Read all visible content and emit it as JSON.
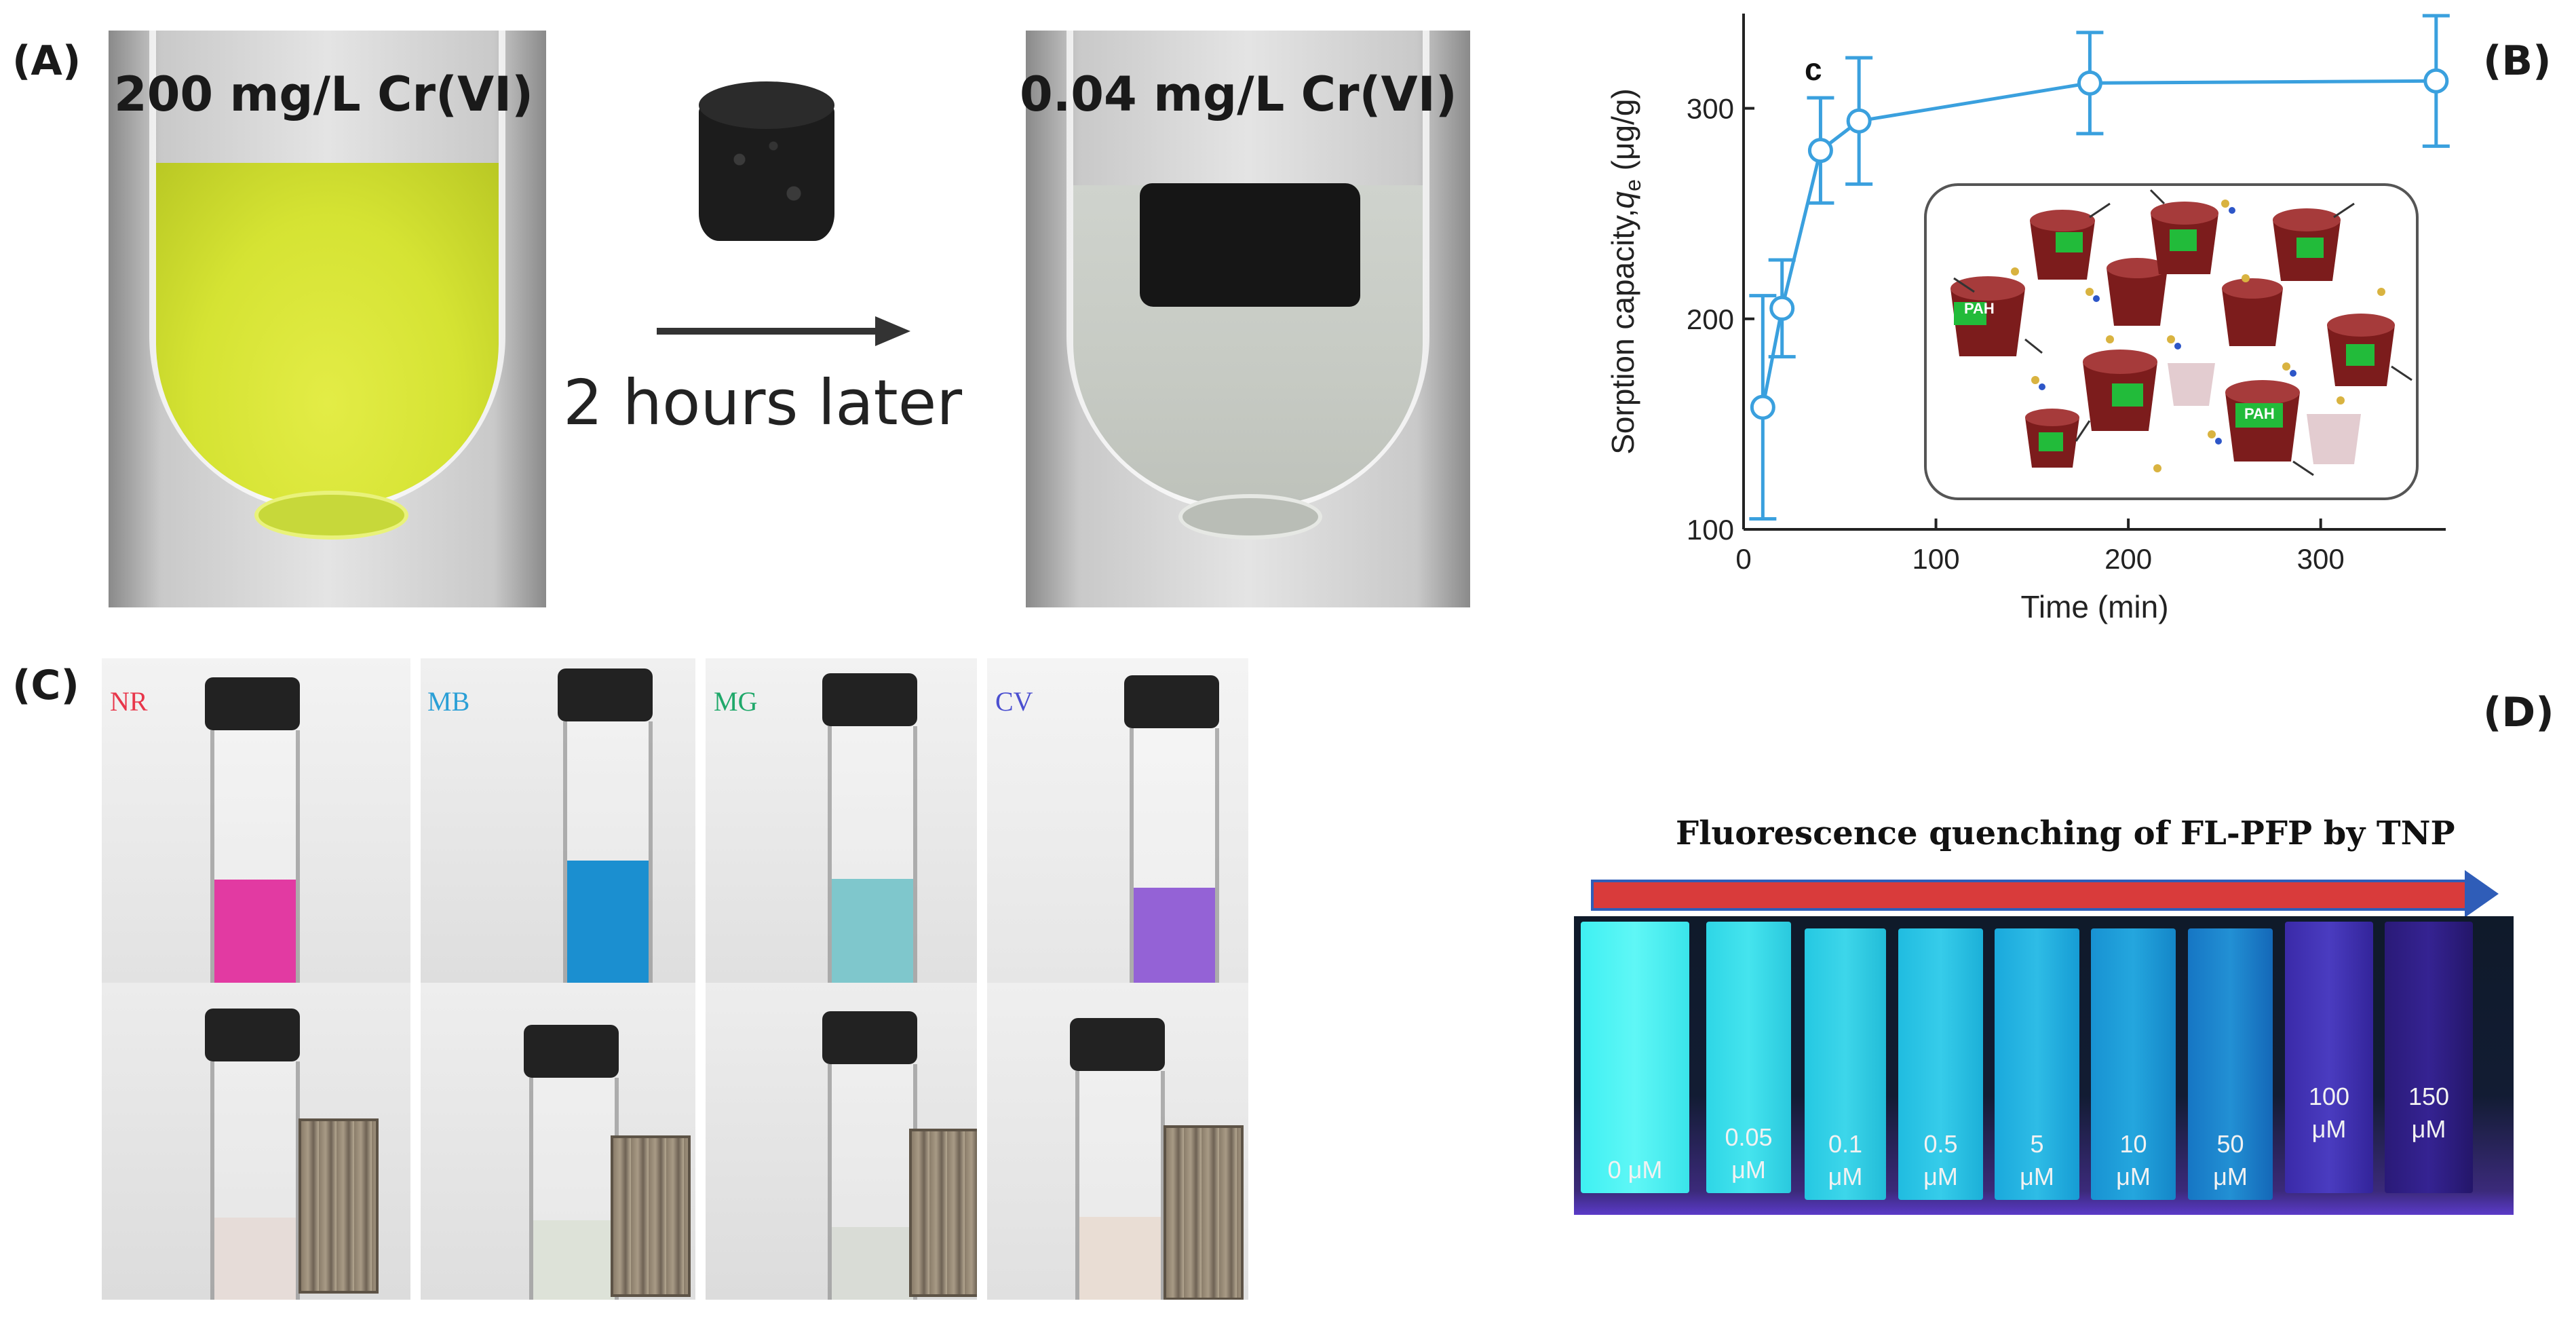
{
  "panels": {
    "a": {
      "label": "(A)",
      "before_label": "200 mg/L  Cr(VI)",
      "after_label": "0.04 mg/L Cr(VI)",
      "time_label": "2 hours later",
      "colors": {
        "before_liquid": "#d8e636",
        "after_liquid": "#c9cdc6",
        "sorbent": "#1b1b1b"
      }
    },
    "b": {
      "label": "(B)",
      "inset_letter": "c",
      "inset_text": "PAH"
    },
    "c": {
      "label": "(C)",
      "dyes": [
        {
          "name": "NR",
          "name_color": "#e8364a",
          "liquid": "#e23aa2"
        },
        {
          "name": "MB",
          "name_color": "#2a9fd6",
          "liquid": "#1b8fd0"
        },
        {
          "name": "MG",
          "name_color": "#1fa86a",
          "liquid": "#7fc7cc"
        },
        {
          "name": "CV",
          "name_color": "#4b4fd0",
          "liquid": "#9462d6"
        }
      ]
    },
    "d": {
      "label": "(D)",
      "title": "Fluorescence quenching of FL-PFP by TNP",
      "concentrations": [
        {
          "value": "0",
          "unit": "μM"
        },
        {
          "value": "0.05",
          "unit": "μM"
        },
        {
          "value": "0.1",
          "unit": "μM"
        },
        {
          "value": "0.5",
          "unit": "μM"
        },
        {
          "value": "5",
          "unit": "μM"
        },
        {
          "value": "10",
          "unit": "μM"
        },
        {
          "value": "50",
          "unit": "μM"
        },
        {
          "value": "100",
          "unit": "μM"
        },
        {
          "value": "150",
          "unit": "μM"
        }
      ]
    }
  },
  "chart_data": {
    "type": "line",
    "x": [
      10,
      20,
      40,
      60,
      180,
      360
    ],
    "y": [
      158,
      205,
      280,
      294,
      312,
      313
    ],
    "error": [
      53,
      23,
      25,
      30,
      24,
      31
    ],
    "xlabel": "Time (min)",
    "ylabel": "Sorption capacity,",
    "ylabel_symbol": "q",
    "ylabel_subscript": "e",
    "ylabel_unit": " (μg/g)",
    "xlim": [
      0,
      365
    ],
    "ylim": [
      100,
      345
    ],
    "xticks": [
      0,
      100,
      200,
      300
    ],
    "yticks": [
      100,
      200,
      300
    ],
    "color": "#3aa0de",
    "grid": false
  }
}
